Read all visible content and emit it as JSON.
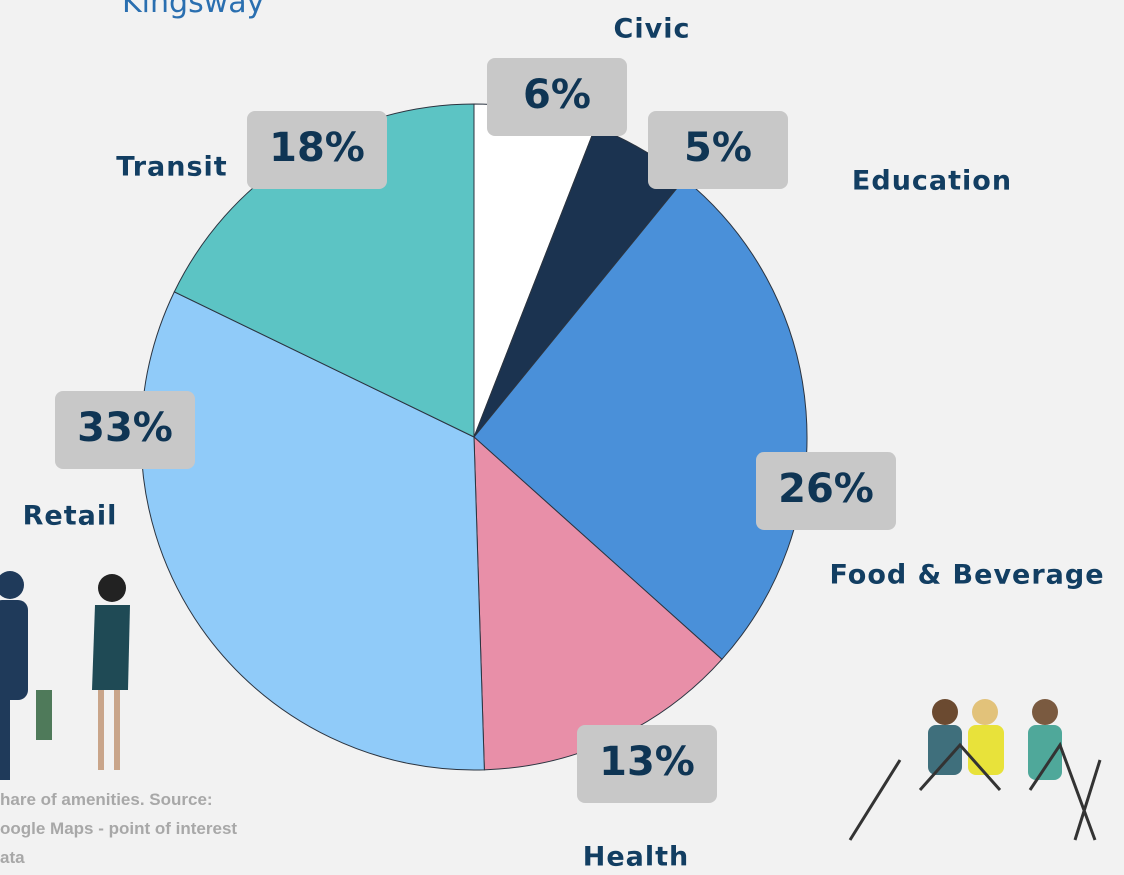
{
  "chart_data": {
    "type": "pie",
    "title": "Kingsway",
    "caption": [
      "hare of amenities. Source:",
      "oogle Maps - point of interest",
      "ata"
    ],
    "categories": [
      "Civic",
      "Education",
      "Food & Beverage",
      "Health",
      "Retail",
      "Transit"
    ],
    "values": [
      6,
      5,
      26,
      13,
      33,
      18
    ],
    "value_labels": [
      "6%",
      "5%",
      "26%",
      "13%",
      "33%",
      "18%"
    ],
    "colors": [
      "#ffffff",
      "#1b3350",
      "#4a90d9",
      "#e88fa8",
      "#90cbf9",
      "#5cc4c4"
    ]
  }
}
